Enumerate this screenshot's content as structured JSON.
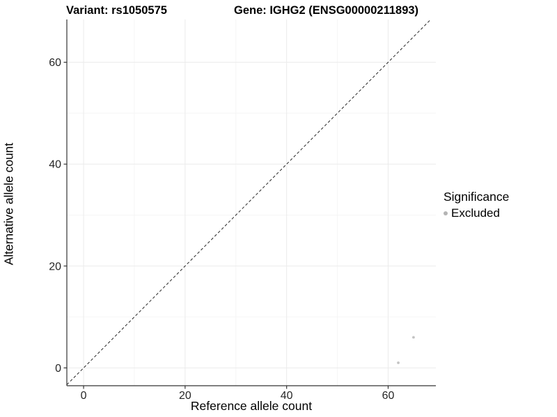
{
  "chart_data": {
    "type": "scatter",
    "title_left": "Variant: rs1050575",
    "title_right": "Gene: IGHG2 (ENSG00000211893)",
    "xlabel": "Reference allele count",
    "ylabel": "Alternative allele count",
    "xlim": [
      -3.3,
      69.4
    ],
    "ylim": [
      -3.5,
      68.4
    ],
    "x_major_ticks": [
      0,
      20,
      40,
      60
    ],
    "y_major_ticks": [
      0,
      20,
      40,
      60
    ],
    "x_minor_ticks": [
      10,
      30,
      50
    ],
    "y_minor_ticks": [
      10,
      30,
      50
    ],
    "grid": "major+minor",
    "identity_line": {
      "equation": "y = x",
      "style": "dashed"
    },
    "legend": {
      "title": "Significance",
      "position": "right",
      "entries": [
        {
          "label": "Excluded",
          "color": "#b4b4b4"
        }
      ]
    },
    "series": [
      {
        "name": "Excluded",
        "color": "#c3c3c3",
        "points": [
          [
            62,
            1
          ],
          [
            65,
            6
          ]
        ]
      }
    ]
  },
  "colors": {
    "background": "#ffffff",
    "grid_major": "#ebebeb",
    "grid_minor": "#f5f5f5",
    "axis_line": "#333333",
    "tick_text": "#262626",
    "dashed_line": "#262626"
  }
}
